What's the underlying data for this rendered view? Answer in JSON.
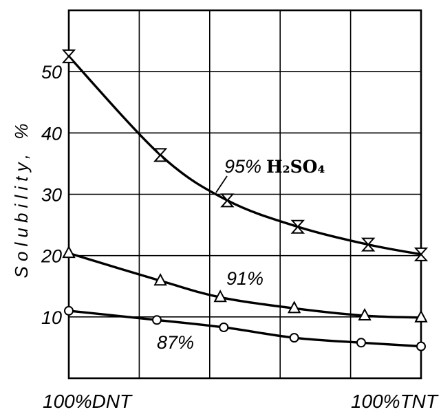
{
  "colors": {
    "ink": "#000000",
    "background": "#ffffff"
  },
  "chart_data": {
    "type": "line",
    "ylabel": "Solubility, %",
    "xlim": [
      0,
      100
    ],
    "ylim": [
      0,
      60
    ],
    "x_tick_labels": [
      {
        "x": 0,
        "label": "100%DNT"
      },
      {
        "x": 100,
        "label": "100%TNT"
      }
    ],
    "y_ticks": [
      10,
      20,
      30,
      40,
      50
    ],
    "x_gridlines": [
      20,
      40,
      60,
      80
    ],
    "grid": true,
    "series": [
      {
        "name": "95% H₂SO₄",
        "marker": "hourglass",
        "x": [
          0,
          26,
          45,
          65,
          85,
          100
        ],
        "y": [
          52.5,
          36.4,
          29.0,
          24.7,
          21.8,
          20.2
        ]
      },
      {
        "name": "91%",
        "marker": "triangle",
        "x": [
          0,
          26,
          43,
          64,
          84,
          100
        ],
        "y": [
          20.4,
          15.9,
          13.2,
          11.4,
          10.2,
          9.9
        ]
      },
      {
        "name": "87%",
        "marker": "circle",
        "x": [
          0,
          25,
          44,
          64,
          83,
          100
        ],
        "y": [
          11.0,
          9.5,
          8.3,
          6.6,
          5.8,
          5.2
        ]
      }
    ]
  }
}
